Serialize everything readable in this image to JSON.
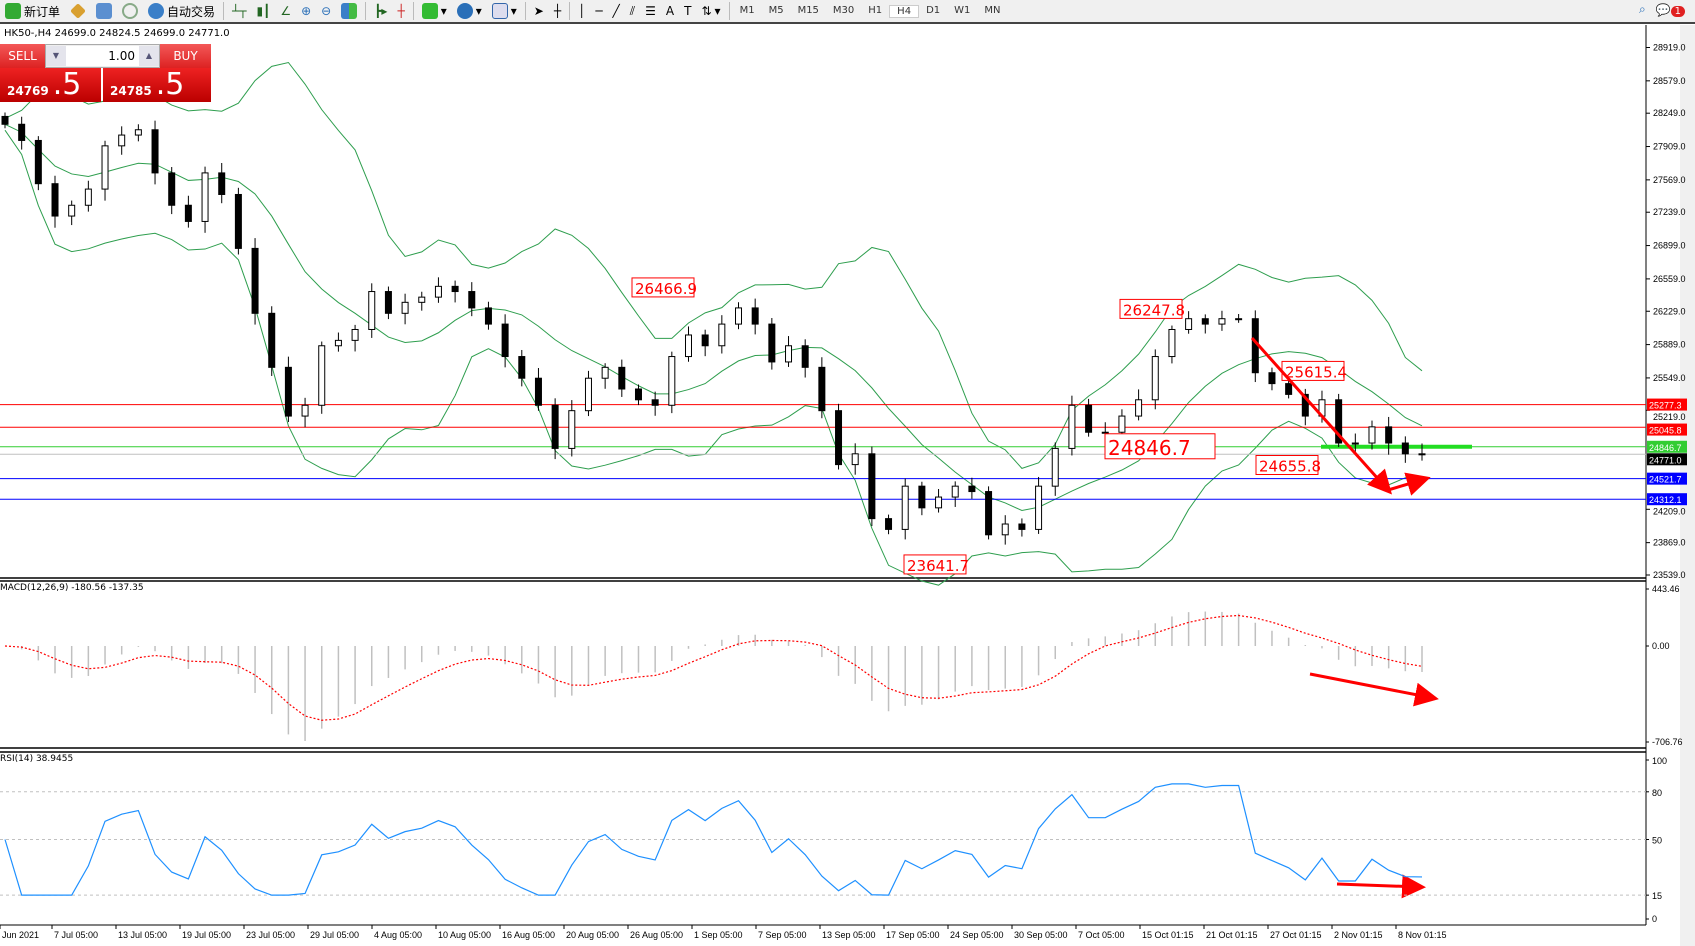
{
  "toolbar": {
    "new_order": "新订单",
    "auto_trading": "自动交易",
    "timeframes": [
      "M1",
      "M5",
      "M15",
      "M30",
      "H1",
      "H4",
      "D1",
      "W1",
      "MN"
    ],
    "active_timeframe": "H4",
    "notification_count": "1",
    "icons": [
      "new-order-icon",
      "favorites-icon",
      "market-watch-icon",
      "signals-icon",
      "auto-trading-icon",
      "bar-chart-icon",
      "candlestick-icon",
      "line-chart-icon",
      "zoom-in-icon",
      "zoom-out-icon",
      "tile-windows-icon",
      "auto-scroll-icon",
      "chart-shift-icon",
      "indicators-icon",
      "periods-icon",
      "templates-icon",
      "cursor-icon",
      "crosshair-icon",
      "vertical-line-icon",
      "horizontal-line-icon",
      "trendline-icon",
      "equidistant-channel-icon",
      "fibonacci-icon",
      "text-icon",
      "text-label-icon",
      "arrows-icon",
      "search-icon",
      "notification-icon"
    ]
  },
  "chart_header": "HK50-,H4  24699.0 24824.5 24699.0 24771.0",
  "one_click": {
    "sell_label": "SELL",
    "buy_label": "BUY",
    "lot": "1.00",
    "sell_price_main": "24769",
    "sell_price_frac": ".5",
    "buy_price_main": "24785",
    "buy_price_frac": ".5"
  },
  "chart_data": {
    "type": "candlestick",
    "symbol": "HK50-",
    "timeframe": "H4",
    "closes": [
      28136,
      27971,
      27530,
      27200,
      27310,
      27475,
      27916,
      28026,
      28080,
      27640,
      27310,
      27145,
      27640,
      27420,
      26870,
      26208,
      25657,
      25160,
      25270,
      25877,
      25932,
      26043,
      26430,
      26208,
      26320,
      26373,
      26483,
      26430,
      26263,
      26098,
      25767,
      25546,
      25270,
      24830,
      25215,
      25546,
      25657,
      25436,
      25326,
      25270,
      25767,
      25987,
      25877,
      26098,
      26263,
      26098,
      25712,
      25877,
      25657,
      25215,
      24665,
      24775,
      24114,
      24004,
      24445,
      24224,
      24334,
      24445,
      24390,
      23949,
      24059,
      24004,
      24445,
      24830,
      25270,
      24995,
      24995,
      25160,
      25326,
      25767,
      26043,
      26153,
      26098,
      26153,
      26153,
      25602,
      25491,
      25381,
      25160,
      25326,
      24885,
      24885,
      25050,
      24885,
      24775,
      24771
    ],
    "price_ticks": [
      "28919.0",
      "28579.0",
      "28249.0",
      "27909.0",
      "27569.0",
      "27239.0",
      "26899.0",
      "26559.0",
      "26229.0",
      "25889.0",
      "25549.0",
      "25219.0",
      "24209.0",
      "23869.0",
      "23539.0"
    ],
    "price_range": [
      23539,
      28919
    ],
    "time_ticks": [
      "Jun 2021",
      "7 Jul 05:00",
      "13 Jul 05:00",
      "19 Jul 05:00",
      "23 Jul 05:00",
      "29 Jul 05:00",
      "4 Aug 05:00",
      "10 Aug 05:00",
      "16 Aug 05:00",
      "20 Aug 05:00",
      "26 Aug 05:00",
      "1 Sep 05:00",
      "7 Sep 05:00",
      "13 Sep 05:00",
      "17 Sep 05:00",
      "24 Sep 05:00",
      "30 Sep 05:00",
      "7 Oct 05:00",
      "15 Oct 01:15",
      "21 Oct 01:15",
      "27 Oct 01:15",
      "2 Nov 01:15",
      "8 Nov 01:15"
    ],
    "horizontal_lines": [
      {
        "price": 25277.3,
        "label": "25277.3",
        "color": "#ff0000"
      },
      {
        "price": 25045.8,
        "label": "25045.8",
        "color": "#ff0000"
      },
      {
        "price": 24846.7,
        "label": "24846.7",
        "color": "#32cd32"
      },
      {
        "price": 24771.0,
        "label": "24771.0",
        "color": "#000000",
        "line": "#c0c0c0"
      },
      {
        "price": 24521.7,
        "label": "24521.7",
        "color": "#0000ff"
      },
      {
        "price": 24312.1,
        "label": "24312.1",
        "color": "#0000ff"
      }
    ],
    "annotations": [
      {
        "label": "26466.9",
        "price": 26466.9
      },
      {
        "label": "26247.8",
        "price": 26247.8
      },
      {
        "label": "25615.4",
        "price": 25615.4
      },
      {
        "label": "24846.7",
        "price": 24846.7,
        "large": true
      },
      {
        "label": "24655.8",
        "price": 24655.8
      },
      {
        "label": "23641.7",
        "price": 23641.7
      }
    ],
    "bollinger_color": "#2e9e4e",
    "macd": {
      "label": "MACD(12,26,9) -180.56 -137.35",
      "ticks": [
        "443.46",
        "0.00",
        "-706.76"
      ],
      "range": [
        -706.76,
        443.46
      ],
      "signal_color": "#ff0000",
      "hist_color": "#c0c0c0"
    },
    "rsi": {
      "label": "RSI(14) 38.9455",
      "ticks": [
        "100",
        "80",
        "50",
        "15",
        "0"
      ],
      "levels": [
        80,
        50,
        15
      ],
      "color": "#1e90ff"
    },
    "arrow_color": "#ff0000"
  }
}
